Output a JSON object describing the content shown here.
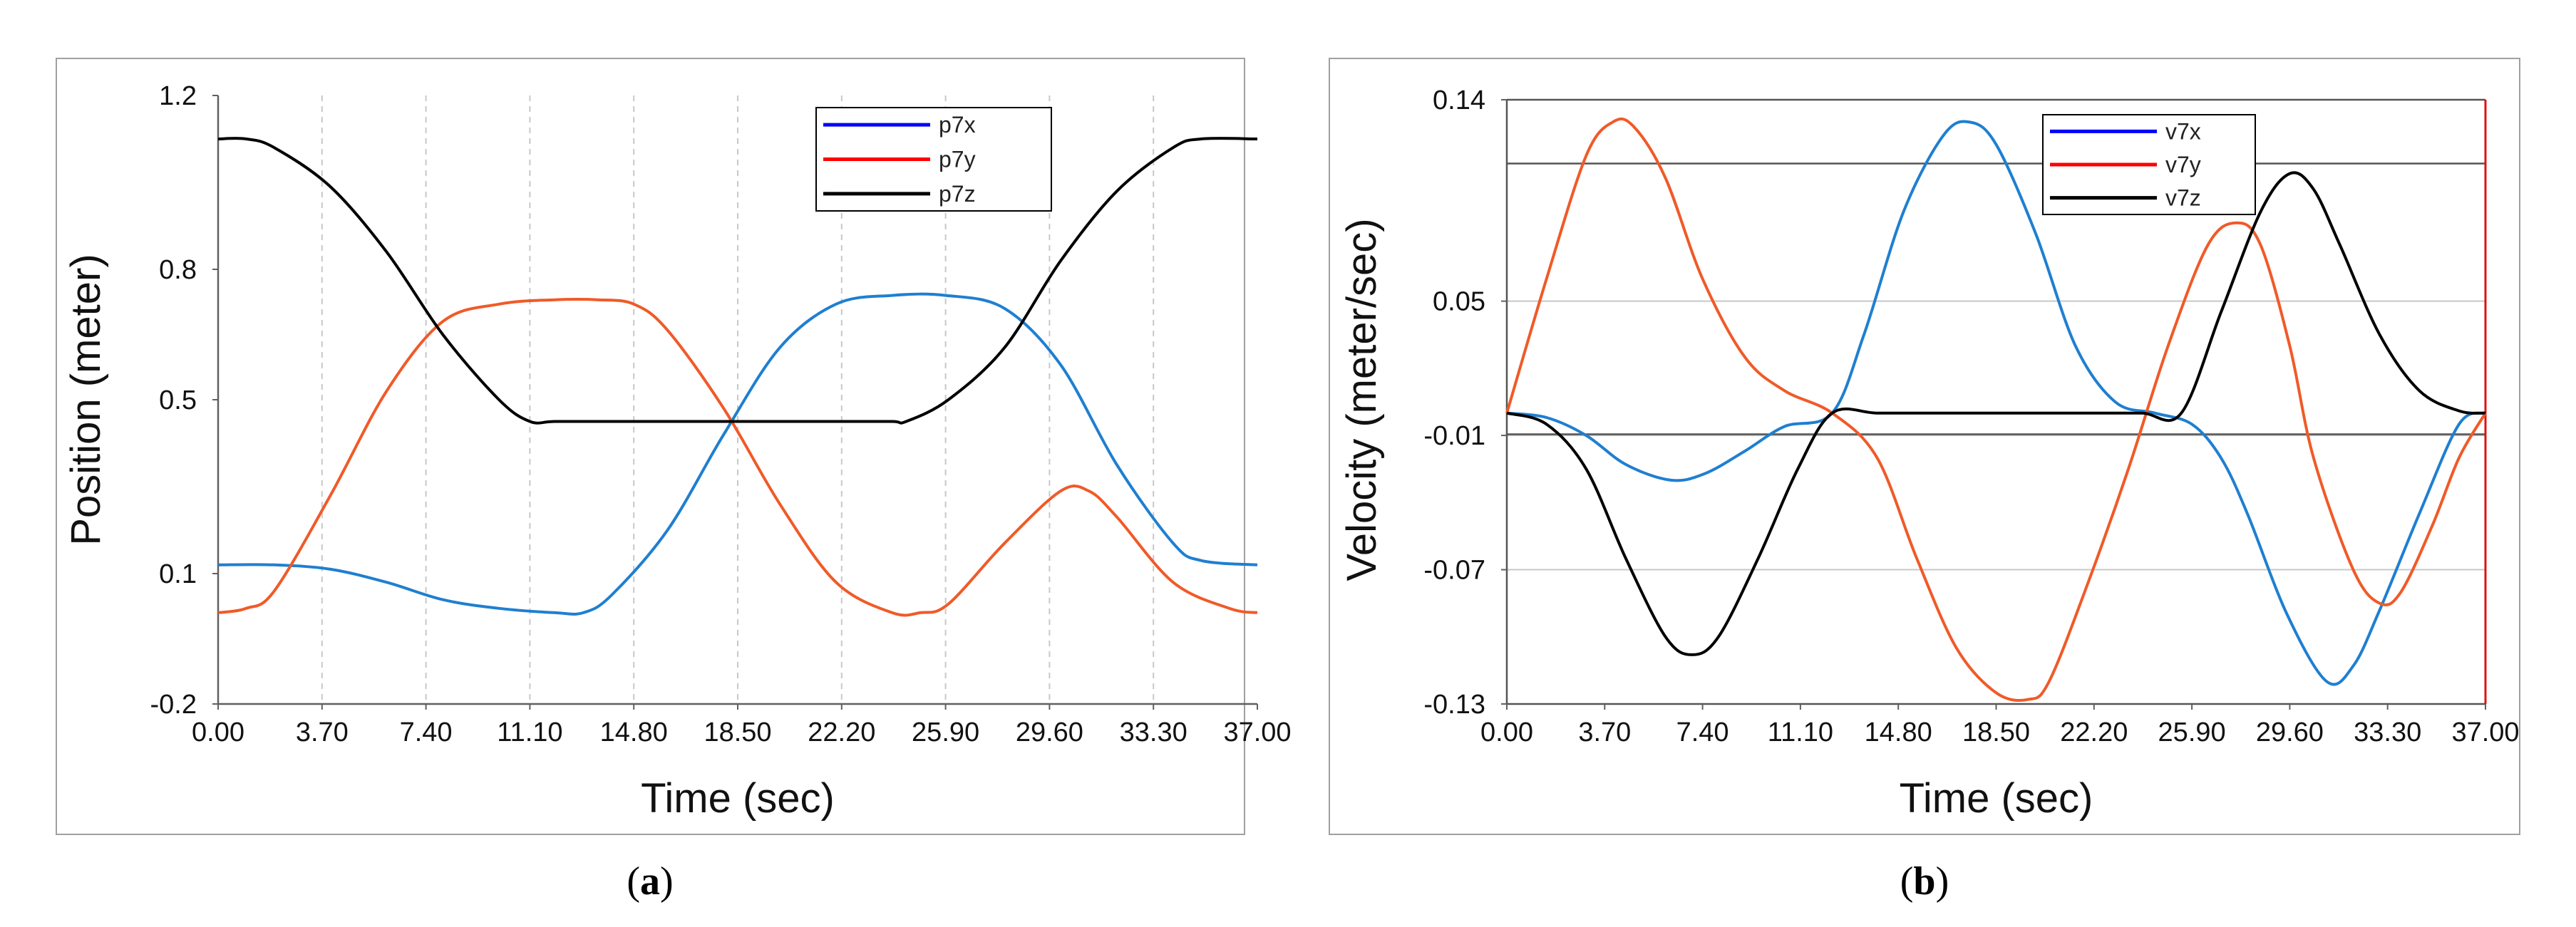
{
  "panel_labels": {
    "a": "a",
    "b": "b"
  },
  "chart_data": [
    {
      "id": "a",
      "type": "line",
      "title": "",
      "xlabel": "Time (sec)",
      "ylabel": "Position (meter)",
      "xlim": [
        0,
        37
      ],
      "ylim": [
        -0.2,
        1.2
      ],
      "xticks": [
        "0.00",
        "3.70",
        "7.40",
        "11.10",
        "14.80",
        "18.50",
        "22.20",
        "25.90",
        "29.60",
        "33.30",
        "37.00"
      ],
      "yticks": [
        "-0.2",
        "0.1",
        "0.5",
        "0.8",
        "1.2"
      ],
      "ytick_values": [
        -0.2,
        0.1,
        0.5,
        0.8,
        1.2
      ],
      "grid": "vertical-dashed",
      "legend_position": "top-right",
      "legend": [
        {
          "name": "p7x",
          "color": "#0000ff"
        },
        {
          "name": "p7y",
          "color": "#ff0000"
        },
        {
          "name": "p7z",
          "color": "#000000"
        }
      ],
      "series": [
        {
          "name": "p7x",
          "color": "#1f7fd0",
          "x": [
            0,
            2,
            4,
            6,
            8,
            10,
            12,
            13,
            14,
            16,
            18,
            20,
            22,
            24,
            25.9,
            28,
            30,
            32,
            34,
            35,
            37
          ],
          "y": [
            0.12,
            0.12,
            0.11,
            0.08,
            0.04,
            0.02,
            0.01,
            0.01,
            0.05,
            0.2,
            0.42,
            0.62,
            0.72,
            0.74,
            0.74,
            0.71,
            0.58,
            0.35,
            0.17,
            0.13,
            0.12
          ]
        },
        {
          "name": "p7y",
          "color": "#f05a28",
          "x": [
            0,
            1,
            2,
            4,
            6,
            8,
            10,
            12,
            13.5,
            14.8,
            16,
            18,
            20,
            22,
            24,
            25,
            26,
            28,
            30,
            31,
            32,
            34,
            36,
            37
          ],
          "y": [
            0.01,
            0.02,
            0.06,
            0.28,
            0.52,
            0.68,
            0.72,
            0.73,
            0.73,
            0.72,
            0.66,
            0.48,
            0.26,
            0.08,
            0.01,
            0.01,
            0.03,
            0.17,
            0.29,
            0.29,
            0.23,
            0.08,
            0.02,
            0.01
          ]
        },
        {
          "name": "p7z",
          "color": "#000000",
          "x": [
            0,
            1,
            2,
            4,
            6,
            8,
            10,
            11.1,
            12,
            14,
            16,
            18,
            20,
            22,
            24,
            24.5,
            26,
            28,
            30,
            32,
            34,
            35,
            37
          ],
          "y": [
            1.1,
            1.1,
            1.08,
            0.99,
            0.84,
            0.65,
            0.5,
            0.45,
            0.45,
            0.45,
            0.45,
            0.45,
            0.45,
            0.45,
            0.45,
            0.45,
            0.5,
            0.62,
            0.82,
            0.98,
            1.08,
            1.1,
            1.1
          ]
        }
      ]
    },
    {
      "id": "b",
      "type": "line",
      "title": "",
      "xlabel": "Time (sec)",
      "ylabel": "Velocity (meter/sec)",
      "xlim": [
        0,
        37
      ],
      "ylim": [
        -0.13,
        0.14
      ],
      "xticks": [
        "0.00",
        "3.70",
        "7.40",
        "11.10",
        "14.80",
        "18.50",
        "22.20",
        "25.90",
        "29.60",
        "33.30",
        "37.00"
      ],
      "yticks": [
        "-0.13",
        "-0.07",
        "-0.01",
        "0.05",
        "0.14"
      ],
      "ytick_values": [
        -0.13,
        -0.07,
        -0.01,
        0.05,
        0.14
      ],
      "reference_lines": [
        0.1115,
        -0.0095
      ],
      "grid": "horizontal",
      "legend_position": "top-right",
      "legend": [
        {
          "name": "v7x",
          "color": "#0000ff"
        },
        {
          "name": "v7y",
          "color": "#ff0000"
        },
        {
          "name": "v7z",
          "color": "#000000"
        }
      ],
      "series": [
        {
          "name": "v7x",
          "color": "#1f7fd0",
          "x": [
            0,
            1.5,
            3,
            4.5,
            6.2,
            7.5,
            9,
            10.5,
            12.3,
            13.5,
            15,
            16.5,
            17.5,
            18.5,
            20,
            21.5,
            23,
            24.5,
            25.9,
            27,
            28,
            29.5,
            31,
            32,
            33,
            34.5,
            36,
            37
          ],
          "y": [
            0,
            -0.002,
            -0.01,
            -0.023,
            -0.03,
            -0.027,
            -0.017,
            -0.006,
            0,
            0.035,
            0.09,
            0.124,
            0.13,
            0.12,
            0.08,
            0.03,
            0.005,
            0,
            -0.005,
            -0.02,
            -0.045,
            -0.09,
            -0.12,
            -0.113,
            -0.088,
            -0.045,
            -0.005,
            0
          ]
        },
        {
          "name": "v7y",
          "color": "#f05a28",
          "x": [
            0,
            1.5,
            3,
            4,
            4.8,
            6,
            7.4,
            9,
            10.5,
            12.3,
            14,
            15.5,
            17,
            18.5,
            19.7,
            20.5,
            22,
            23.5,
            25,
            26.5,
            27.6,
            28.5,
            29.6,
            30.5,
            32,
            33,
            33.8,
            35,
            36,
            37
          ],
          "y": [
            0,
            0.06,
            0.115,
            0.13,
            0.128,
            0.105,
            0.06,
            0.025,
            0.01,
            0,
            -0.02,
            -0.065,
            -0.105,
            -0.125,
            -0.128,
            -0.12,
            -0.075,
            -0.025,
            0.03,
            0.075,
            0.085,
            0.075,
            0.03,
            -0.02,
            -0.07,
            -0.085,
            -0.08,
            -0.05,
            -0.02,
            0
          ]
        },
        {
          "name": "v7z",
          "color": "#000000",
          "x": [
            0,
            1.5,
            3,
            4.5,
            6,
            7,
            8,
            9.5,
            11,
            12.3,
            14,
            16,
            18,
            20,
            22,
            24,
            25.5,
            27,
            28.5,
            29.6,
            30.5,
            31.5,
            33,
            34.5,
            36,
            37
          ],
          "y": [
            0,
            -0.005,
            -0.025,
            -0.065,
            -0.1,
            -0.108,
            -0.1,
            -0.065,
            -0.025,
            0,
            0,
            0,
            0,
            0,
            0,
            0,
            0,
            0.045,
            0.09,
            0.107,
            0.1,
            0.075,
            0.035,
            0.01,
            0.001,
            0
          ]
        }
      ]
    }
  ]
}
